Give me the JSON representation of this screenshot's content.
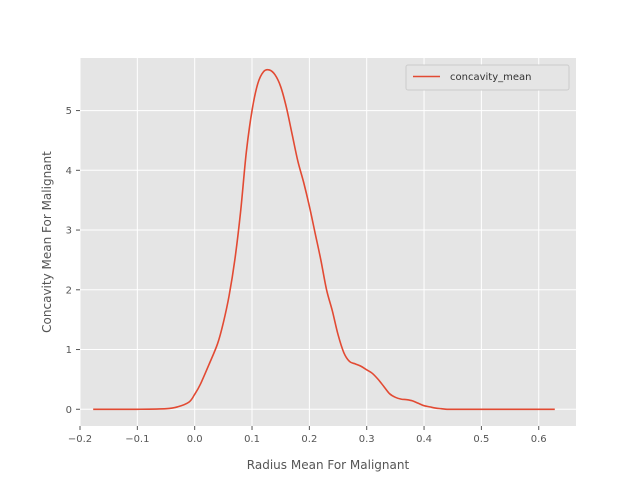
{
  "chart_data": {
    "type": "line",
    "title": "",
    "xlabel": "Radius Mean For Malignant",
    "ylabel": "Concavity Mean For Malignant",
    "xlim": [
      -0.2,
      0.665
    ],
    "ylim": [
      -0.28,
      5.88
    ],
    "xticks": [
      -0.2,
      -0.1,
      0.0,
      0.1,
      0.2,
      0.3,
      0.4,
      0.5,
      0.6
    ],
    "yticks": [
      0,
      1,
      2,
      3,
      4,
      5
    ],
    "grid": true,
    "legend_position": "top-right",
    "series": [
      {
        "name": "concavity_mean",
        "color": "#E24A33",
        "x": [
          -0.177,
          -0.15,
          -0.1,
          -0.05,
          -0.03,
          -0.01,
          0.0,
          0.01,
          0.025,
          0.04,
          0.05,
          0.06,
          0.07,
          0.08,
          0.09,
          0.1,
          0.11,
          0.12,
          0.13,
          0.14,
          0.15,
          0.16,
          0.17,
          0.18,
          0.19,
          0.2,
          0.21,
          0.22,
          0.23,
          0.24,
          0.25,
          0.26,
          0.27,
          0.28,
          0.29,
          0.3,
          0.31,
          0.32,
          0.33,
          0.34,
          0.35,
          0.36,
          0.37,
          0.38,
          0.39,
          0.4,
          0.41,
          0.42,
          0.43,
          0.44,
          0.45,
          0.46,
          0.47,
          0.48,
          0.5,
          0.55,
          0.6,
          0.628
        ],
        "y": [
          0.0,
          0.0,
          0.0,
          0.01,
          0.04,
          0.12,
          0.25,
          0.42,
          0.75,
          1.1,
          1.45,
          1.9,
          2.5,
          3.3,
          4.3,
          5.0,
          5.45,
          5.65,
          5.68,
          5.6,
          5.4,
          5.05,
          4.6,
          4.15,
          3.8,
          3.4,
          2.95,
          2.5,
          2.0,
          1.65,
          1.25,
          0.95,
          0.8,
          0.76,
          0.72,
          0.66,
          0.6,
          0.5,
          0.38,
          0.26,
          0.2,
          0.17,
          0.16,
          0.14,
          0.1,
          0.06,
          0.04,
          0.02,
          0.01,
          0.0,
          0.0,
          0.0,
          0.0,
          0.0,
          0.0,
          0.0,
          0.0,
          0.0
        ]
      }
    ]
  }
}
